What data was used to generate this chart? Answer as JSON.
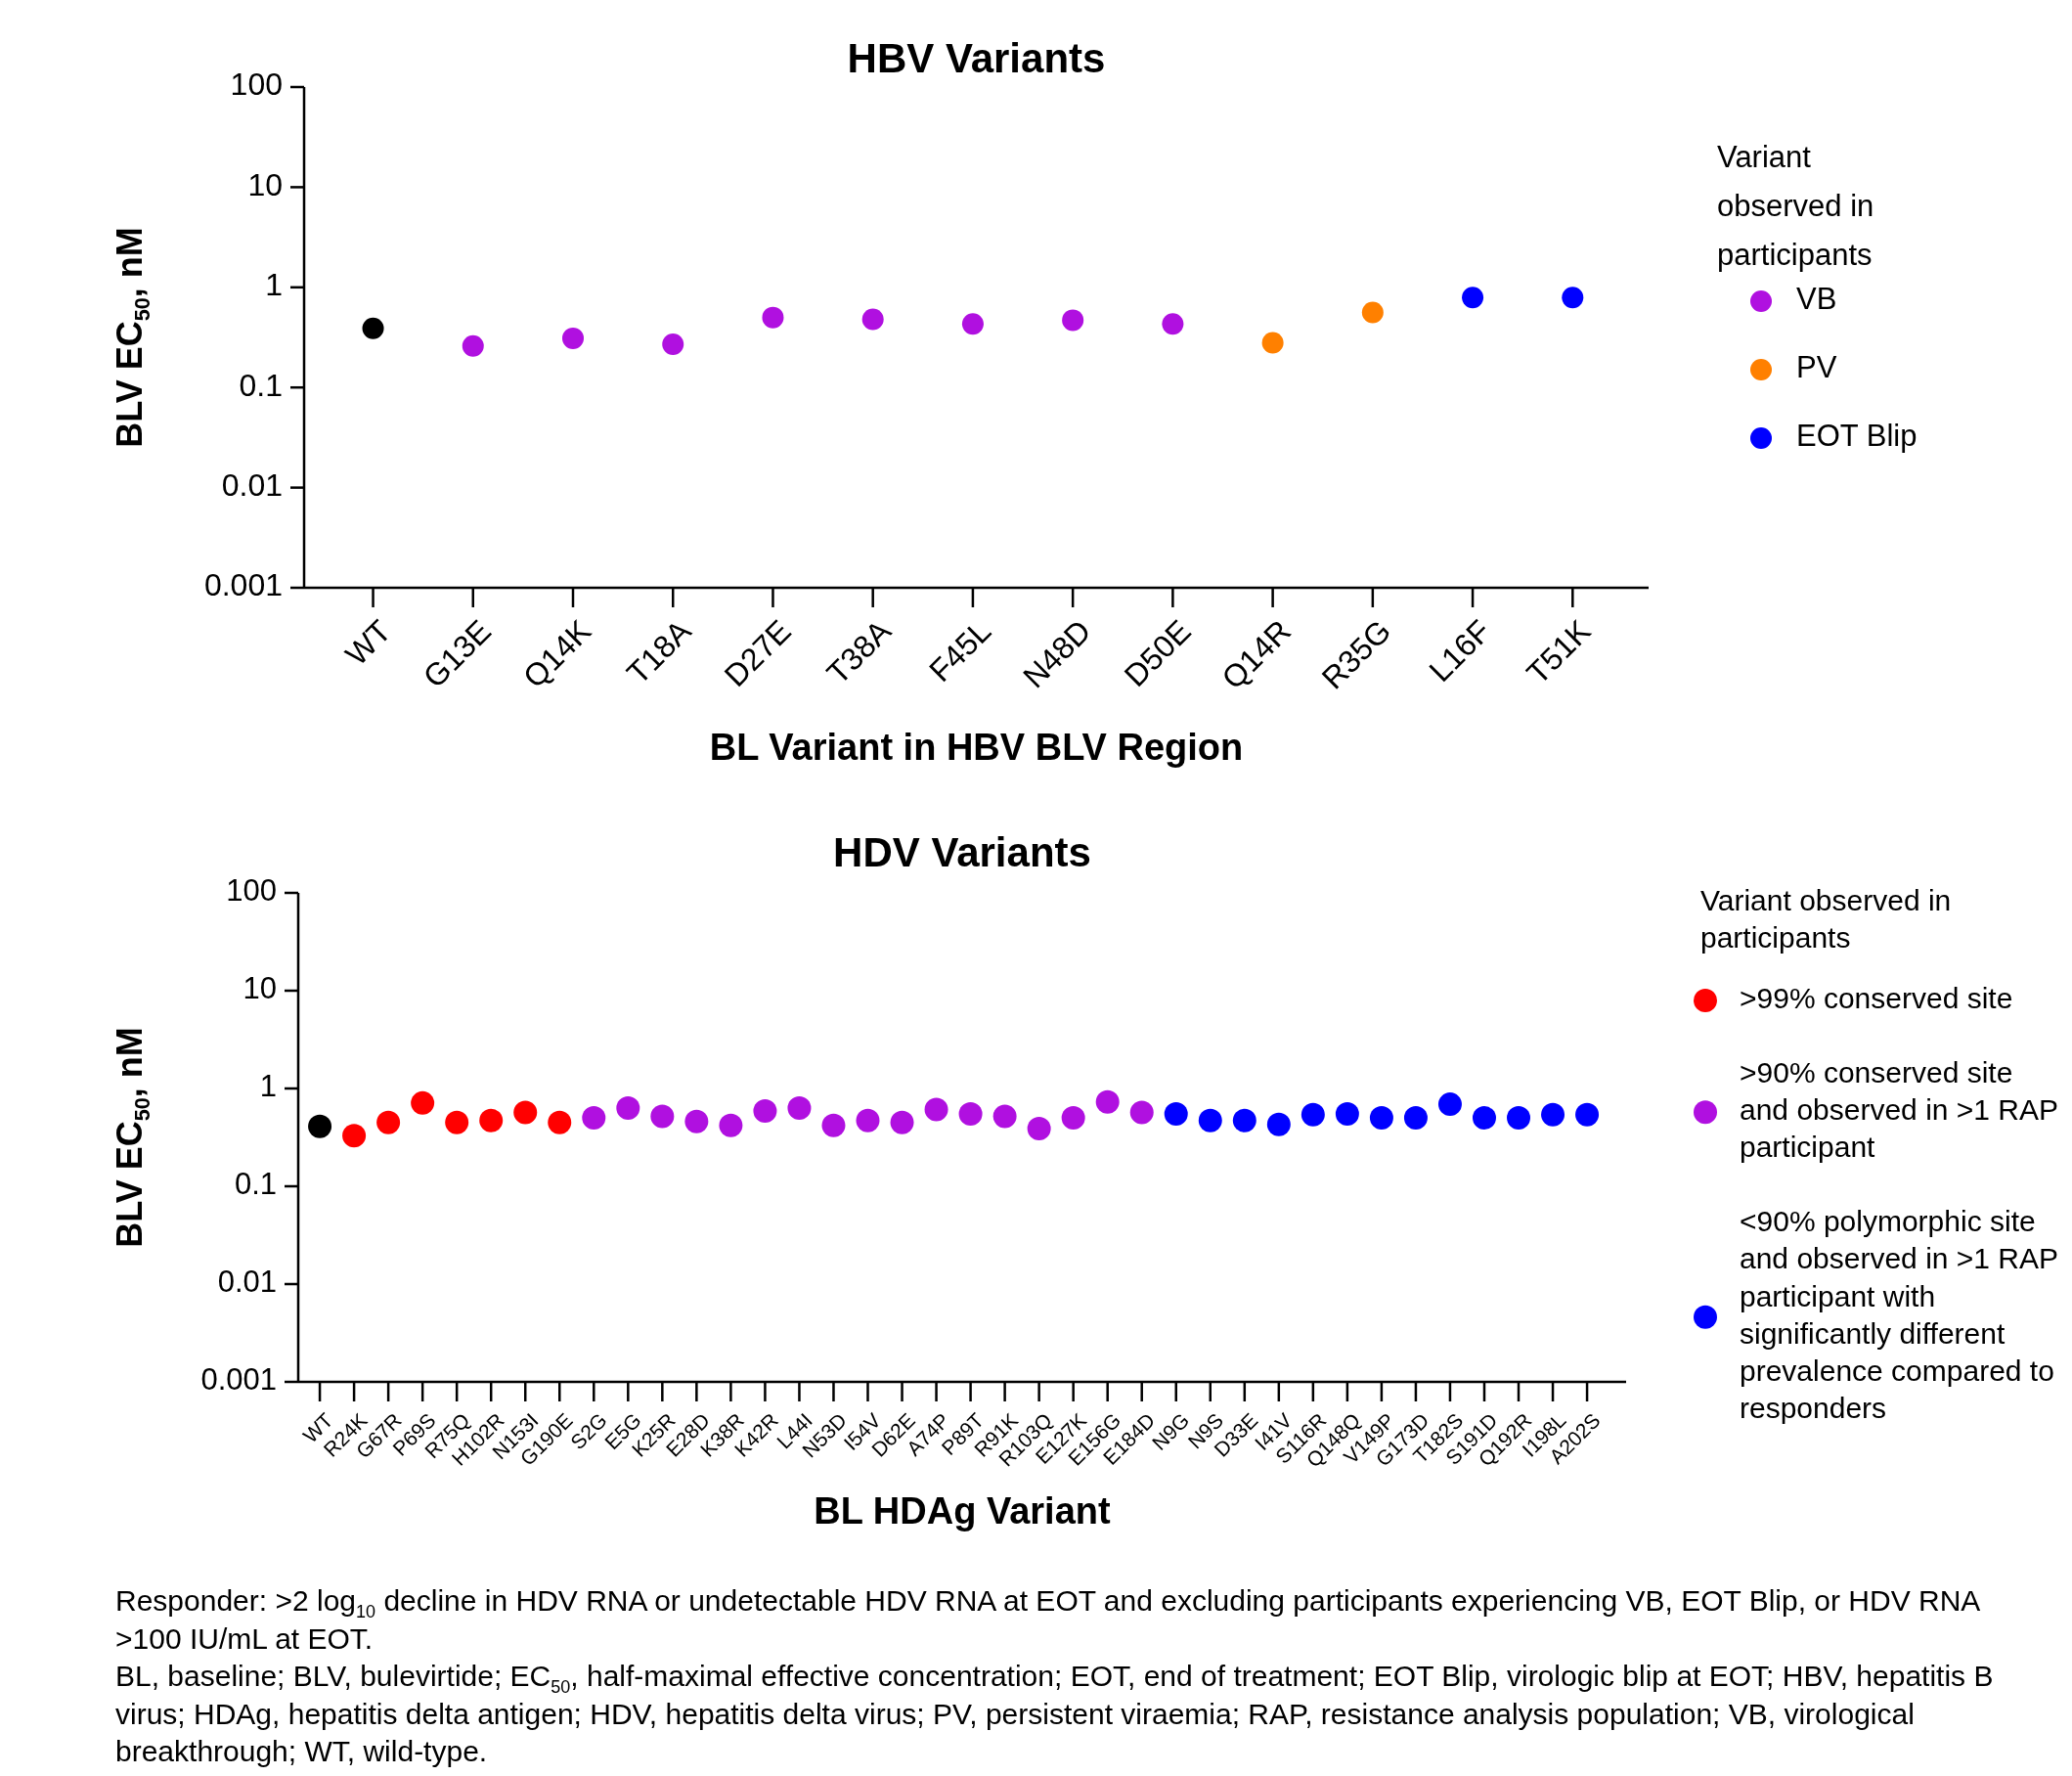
{
  "chart_data": [
    {
      "type": "scatter",
      "title": "HBV Variants",
      "xlabel": "BL Variant in HBV BLV Region",
      "ylabel": "BLV EC$_{50}$, nM",
      "legend_title": "Variant observed in participants",
      "legend": "right",
      "log": "y",
      "marker": "circle",
      "ylim": [
        0.001,
        100
      ],
      "yticks": [
        0.001,
        0.01,
        0.1,
        1,
        10,
        100
      ],
      "categories": [
        "WT",
        "G13E",
        "Q14K",
        "T18A",
        "D27E",
        "T38A",
        "F45L",
        "N48D",
        "D50E",
        "Q14R",
        "R35G",
        "L16F",
        "T51K"
      ],
      "series": [
        {
          "color": "#000000",
          "values": [
            0.39,
            null,
            null,
            null,
            null,
            null,
            null,
            null,
            null,
            null,
            null,
            null,
            null
          ]
        },
        {
          "name": "VB",
          "color": "#b010e0",
          "values": [
            null,
            0.26,
            0.31,
            0.27,
            0.5,
            0.48,
            0.43,
            0.47,
            0.43,
            null,
            null,
            null,
            null
          ]
        },
        {
          "name": "PV",
          "color": "#ff8000",
          "values": [
            null,
            null,
            null,
            null,
            null,
            null,
            null,
            null,
            null,
            0.28,
            0.56,
            null,
            null
          ]
        },
        {
          "name": "EOT Blip",
          "color": "#0000ff",
          "values": [
            null,
            null,
            null,
            null,
            null,
            null,
            null,
            null,
            null,
            null,
            null,
            0.79,
            0.79
          ]
        }
      ]
    },
    {
      "type": "scatter",
      "title": "HDV Variants",
      "xlabel": "BL HDAg Variant",
      "ylabel": "BLV EC$_{50}$, nM",
      "legend_title": "Variant observed in participants",
      "legend": "right",
      "log": "y",
      "marker": "circle",
      "ylim": [
        0.001,
        100
      ],
      "yticks": [
        0.001,
        0.01,
        0.1,
        1,
        10,
        100
      ],
      "categories": [
        "WT",
        "R24K",
        "G67R",
        "P69S",
        "R75Q",
        "H102R",
        "N153I",
        "G190E",
        "S2G",
        "E5G",
        "K25R",
        "E28D",
        "K38R",
        "K42R",
        "L44I",
        "N53D",
        "I54V",
        "D62E",
        "A74P",
        "P89T",
        "R91K",
        "R103Q",
        "E127K",
        "E156G",
        "E184D",
        "N9G",
        "N9S",
        "D33E",
        "I41V",
        "S116R",
        "Q148Q",
        "V149P",
        "G173D",
        "T182S",
        "S191D",
        "Q192R",
        "I198L",
        "A202S"
      ],
      "series": [
        {
          "color": "#000000",
          "values": [
            0.41,
            null,
            null,
            null,
            null,
            null,
            null,
            null,
            null,
            null,
            null,
            null,
            null,
            null,
            null,
            null,
            null,
            null,
            null,
            null,
            null,
            null,
            null,
            null,
            null,
            null,
            null,
            null,
            null,
            null,
            null,
            null,
            null,
            null,
            null,
            null,
            null,
            null
          ]
        },
        {
          "name": ">99% conserved site",
          "color": "#ff0000",
          "values": [
            null,
            0.33,
            0.45,
            0.71,
            0.45,
            0.47,
            0.57,
            0.45,
            null,
            null,
            null,
            null,
            null,
            null,
            null,
            null,
            null,
            null,
            null,
            null,
            null,
            null,
            null,
            null,
            null,
            null,
            null,
            null,
            null,
            null,
            null,
            null,
            null,
            null,
            null,
            null,
            null,
            null
          ]
        },
        {
          "name": ">90% conserved site and observed in >1 RAP participant",
          "color": "#b010e0",
          "values": [
            null,
            null,
            null,
            null,
            null,
            null,
            null,
            null,
            0.5,
            0.63,
            0.52,
            0.46,
            0.42,
            0.59,
            0.63,
            0.42,
            0.47,
            0.45,
            0.61,
            0.55,
            0.52,
            0.39,
            0.5,
            0.73,
            0.57,
            null,
            null,
            null,
            null,
            null,
            null,
            null,
            null,
            null,
            null,
            null,
            null,
            null
          ]
        },
        {
          "name": "<90% polymorphic site and observed in >1 RAP participant with significantly different prevalence compared to responders",
          "color": "#0000ff",
          "values": [
            null,
            null,
            null,
            null,
            null,
            null,
            null,
            null,
            null,
            null,
            null,
            null,
            null,
            null,
            null,
            null,
            null,
            null,
            null,
            null,
            null,
            null,
            null,
            null,
            null,
            0.55,
            0.47,
            0.47,
            0.43,
            0.54,
            0.55,
            0.5,
            0.5,
            0.69,
            0.5,
            0.5,
            0.54,
            0.54
          ]
        }
      ],
      "annotations": [
        "Responder: >2 log$_{10}$ decline in HDV RNA or undetectable HDV RNA at EOT and excluding participants experiencing VB, EOT Blip, or HDV RNA >100 IU/mL at EOT.",
        "BL, baseline; BLV, bulevirtide; EC$_{50}$, half-maximal effective concentration; EOT, end of treatment; EOT Blip, virologic blip at EOT; HBV, hepatitis B virus; HDAg, hepatitis delta antigen; HDV, hepatitis delta virus; PV, persistent viraemia; RAP, resistance analysis population; VB, virological breakthrough; WT, wild-type."
      ]
    }
  ]
}
